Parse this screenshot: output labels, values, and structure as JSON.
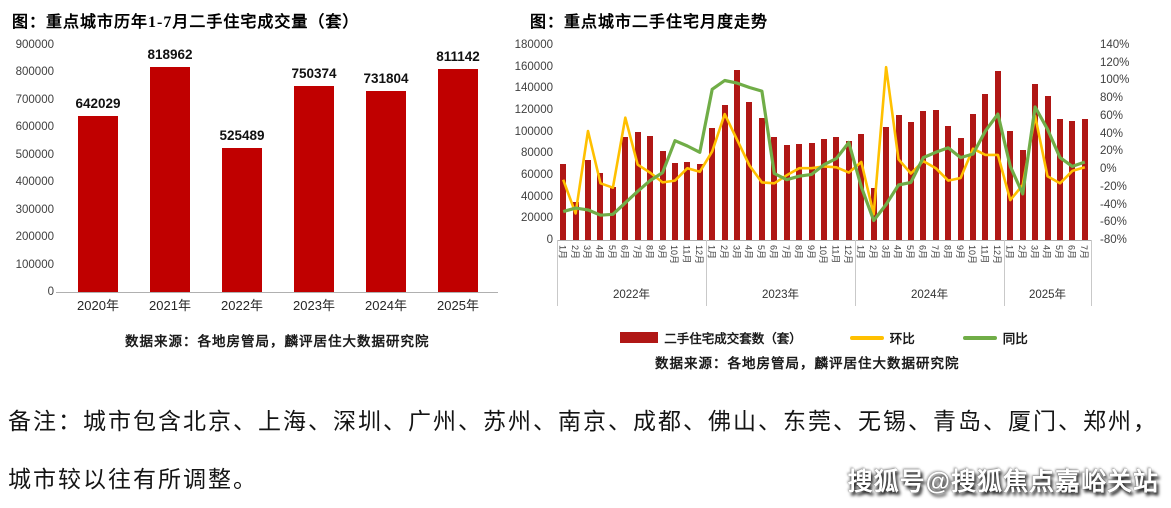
{
  "colors": {
    "left_bar": "#c00000",
    "right_bar": "#b01715",
    "huanbi_line": "#ffc000",
    "tongbi_line": "#70ad47"
  },
  "chart_data": [
    {
      "type": "bar",
      "title": "图：重点城市历年1-7月二手住宅成交量（套）",
      "categories": [
        "2020年",
        "2021年",
        "2022年",
        "2023年",
        "2024年",
        "2025年"
      ],
      "values": [
        642029,
        818962,
        525489,
        750374,
        731804,
        811142
      ],
      "ylim": [
        0,
        900000
      ],
      "yticks": [
        "900000",
        "800000",
        "700000",
        "600000",
        "500000",
        "400000",
        "300000",
        "200000",
        "100000",
        "0"
      ],
      "grid": false,
      "source": "数据来源：各地房管局，麟评居住大数据研究院"
    },
    {
      "type": "bar+line",
      "title": "图：重点城市二手住宅月度走势",
      "month_labels": [
        "1月",
        "2月",
        "3月",
        "4月",
        "5月",
        "6月",
        "7月",
        "8月",
        "9月",
        "10月",
        "11月",
        "12月",
        "1月",
        "2月",
        "3月",
        "4月",
        "5月",
        "6月",
        "7月",
        "8月",
        "9月",
        "10月",
        "11月",
        "12月",
        "1月",
        "2月",
        "3月",
        "4月",
        "5月",
        "6月",
        "7月",
        "8月",
        "9月",
        "10月",
        "11月",
        "12月",
        "1月",
        "2月",
        "3月",
        "4月",
        "5月",
        "6月",
        "7月"
      ],
      "year_groups": [
        {
          "label": "2022年",
          "months": 12
        },
        {
          "label": "2023年",
          "months": 12
        },
        {
          "label": "2024年",
          "months": 12
        },
        {
          "label": "2025年",
          "months": 7
        }
      ],
      "series": [
        {
          "name": "二手住宅成交套数（套）",
          "type": "bar",
          "axis": "left",
          "values": [
            70000,
            35000,
            74000,
            62000,
            49000,
            95000,
            100000,
            96000,
            82000,
            71000,
            72000,
            70000,
            103000,
            125000,
            157000,
            127000,
            113000,
            95000,
            88000,
            89000,
            90000,
            93000,
            95000,
            91000,
            98000,
            48000,
            104000,
            115000,
            109000,
            119000,
            120000,
            105000,
            94000,
            116000,
            135000,
            156000,
            101000,
            83000,
            144000,
            133000,
            112000,
            110000,
            112000
          ]
        },
        {
          "name": "环比",
          "type": "line",
          "axis": "right",
          "values_pct": [
            -12,
            -50,
            43,
            -16,
            -21,
            58,
            5,
            -4,
            -15,
            -13,
            1,
            -3,
            20,
            62,
            33,
            4,
            -15,
            -16,
            -7,
            1,
            1,
            3,
            2,
            -4,
            8,
            -51,
            115,
            11,
            -5,
            9,
            1,
            -13,
            -10,
            23,
            16,
            16,
            -35,
            -18,
            60,
            -8,
            -16,
            -2,
            2
          ]
        },
        {
          "name": "同比",
          "type": "line",
          "axis": "right",
          "values_pct": [
            -48,
            -44,
            -46,
            -52,
            -51,
            -38,
            -25,
            -13,
            -4,
            32,
            26,
            19,
            90,
            100,
            97,
            92,
            88,
            -5,
            -12,
            -8,
            -6,
            5,
            12,
            30,
            -20,
            -58,
            -40,
            -18,
            -15,
            13,
            19,
            24,
            13,
            17,
            43,
            62,
            3,
            -28,
            70,
            45,
            13,
            3,
            8
          ]
        }
      ],
      "left_ylim": [
        0,
        180000
      ],
      "left_yticks": [
        "180000",
        "160000",
        "140000",
        "120000",
        "100000",
        "80000",
        "60000",
        "40000",
        "20000",
        "0"
      ],
      "right_ylim_pct": [
        -80,
        140
      ],
      "right_yticks": [
        "140%",
        "120%",
        "100%",
        "80%",
        "60%",
        "40%",
        "20%",
        "0%",
        "-20%",
        "-40%",
        "-60%",
        "-80%"
      ],
      "grid": false,
      "legend_position": "bottom",
      "source": "数据来源：各地房管局，麟评居住大数据研究院"
    }
  ],
  "note": {
    "line1": "备注：城市包含北京、上海、深圳、广州、苏州、南京、成都、佛山、东莞、无锡、青岛、厦门、郑州，",
    "line2": "城市较以往有所调整。"
  },
  "watermark": "搜狐号@搜狐焦点嘉峪关站"
}
